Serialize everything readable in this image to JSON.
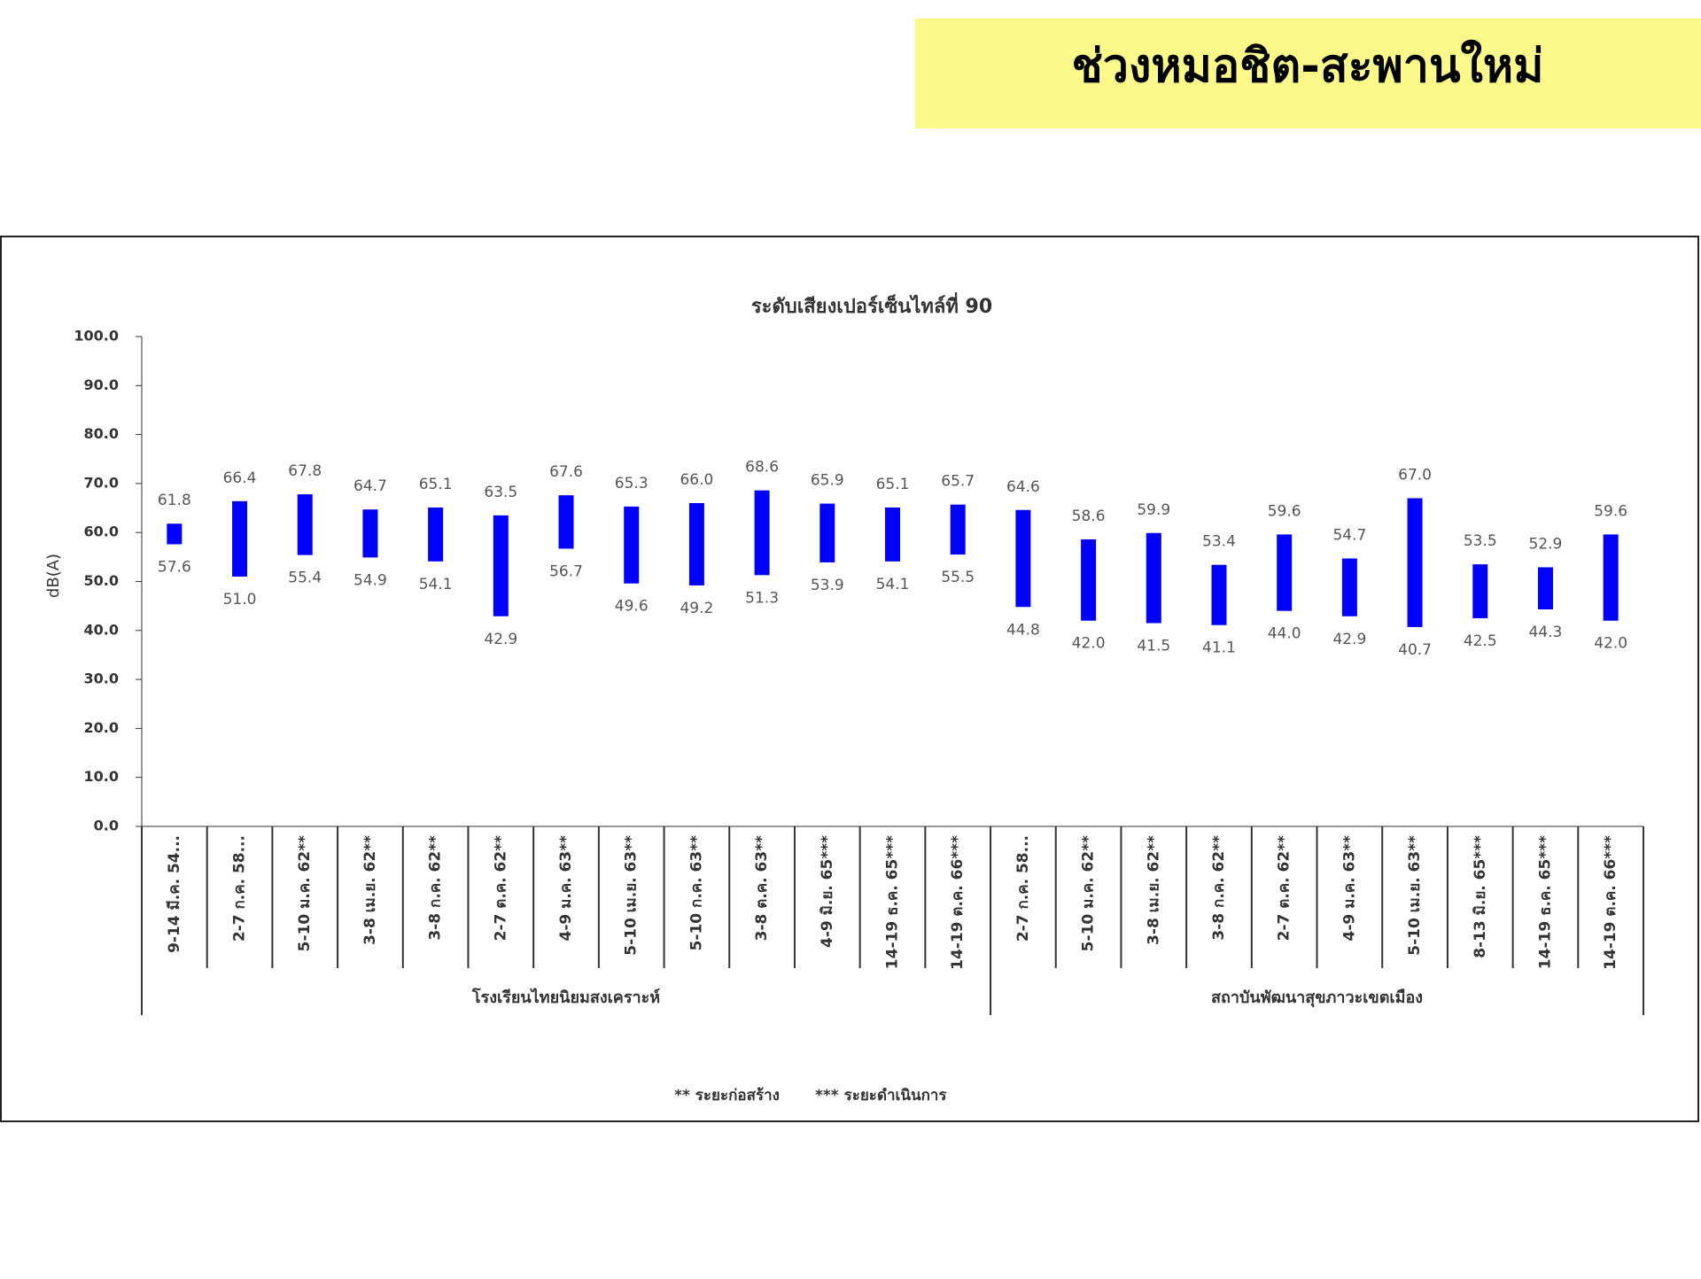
{
  "header": {
    "title": "ช่วงหมอชิต-สะพานใหม่"
  },
  "chart_data": {
    "type": "range-bar",
    "title": "ระดับเสียงเปอร์เซ็นไทล์ที่ 90",
    "ylabel": "dB(A)",
    "color": "#0000ff",
    "ylim": [
      0,
      100
    ],
    "yticks": [
      {
        "value": 0,
        "label": "0.0"
      },
      {
        "value": 10,
        "label": "10.0"
      },
      {
        "value": 20,
        "label": "20.0"
      },
      {
        "value": 30,
        "label": "30.0"
      },
      {
        "value": 40,
        "label": "40.0"
      },
      {
        "value": 50,
        "label": "50.0"
      },
      {
        "value": 60,
        "label": "60.0"
      },
      {
        "value": 70,
        "label": "70.0"
      },
      {
        "value": 80,
        "label": "80.0"
      },
      {
        "value": 90,
        "label": "90.0"
      },
      {
        "value": 100,
        "label": "100.0"
      }
    ],
    "groups": [
      {
        "name": "โรงเรียนไทยนิยมสงเคราะห์",
        "categories": [
          "9-14 มี.ค. 54...",
          "2-7 ก.ค. 58...",
          "5-10 ม.ค. 62**",
          "3-8 เม.ย. 62**",
          "3-8 ก.ค. 62**",
          "2-7 ต.ค. 62**",
          "4-9 ม.ค. 63**",
          "5-10 เม.ย. 63**",
          "5-10 ก.ค. 63**",
          "3-8 ต.ค. 63**",
          "4-9 มิ.ย. 65***",
          "14-19 ธ.ค. 65***",
          "14-19 ต.ค. 66***"
        ],
        "high": [
          61.8,
          66.4,
          67.8,
          64.7,
          65.1,
          63.5,
          67.6,
          65.3,
          66.0,
          68.6,
          65.9,
          65.1,
          65.7
        ],
        "high_labels": [
          "61.8",
          "66.4",
          "67.8",
          "64.7",
          "65.1",
          "63.5",
          "67.6",
          "65.3",
          "66.0",
          "68.6",
          "65.9",
          "65.1",
          "65.7"
        ],
        "low": [
          57.6,
          51.0,
          55.4,
          54.9,
          54.1,
          42.9,
          56.7,
          49.6,
          49.2,
          51.3,
          53.9,
          54.1,
          55.5
        ],
        "low_labels": [
          "57.6",
          "51.0",
          "55.4",
          "54.9",
          "54.1",
          "42.9",
          "56.7",
          "49.6",
          "49.2",
          "51.3",
          "53.9",
          "54.1",
          "55.5"
        ]
      },
      {
        "name": "สถาบันพัฒนาสุขภาวะเขตเมือง",
        "categories": [
          "2-7 ก.ค. 58...",
          "5-10 ม.ค. 62**",
          "3-8 เม.ย. 62**",
          "3-8 ก.ค. 62**",
          "2-7 ต.ค. 62**",
          "4-9 ม.ค. 63**",
          "5-10 เม.ย. 63**",
          "8-13 มิ.ย. 65***",
          "14-19 ธ.ค. 65***",
          "14-19 ต.ค. 66***"
        ],
        "high": [
          64.6,
          58.6,
          59.9,
          53.4,
          59.6,
          54.7,
          67.0,
          53.5,
          52.9,
          59.6
        ],
        "high_labels": [
          "64.6",
          "58.6",
          "59.9",
          "53.4",
          "59.6",
          "54.7",
          "67.0",
          "53.5",
          "52.9",
          "59.6"
        ],
        "low": [
          44.8,
          42.0,
          41.5,
          41.1,
          44.0,
          42.9,
          40.7,
          42.5,
          44.3,
          42.0
        ],
        "low_labels": [
          "44.8",
          "42.0",
          "41.5",
          "41.1",
          "44.0",
          "42.9",
          "40.7",
          "42.5",
          "44.3",
          "42.0"
        ]
      }
    ],
    "notes": [
      "** ระยะก่อสร้าง",
      "*** ระยะดำเนินการ"
    ]
  }
}
